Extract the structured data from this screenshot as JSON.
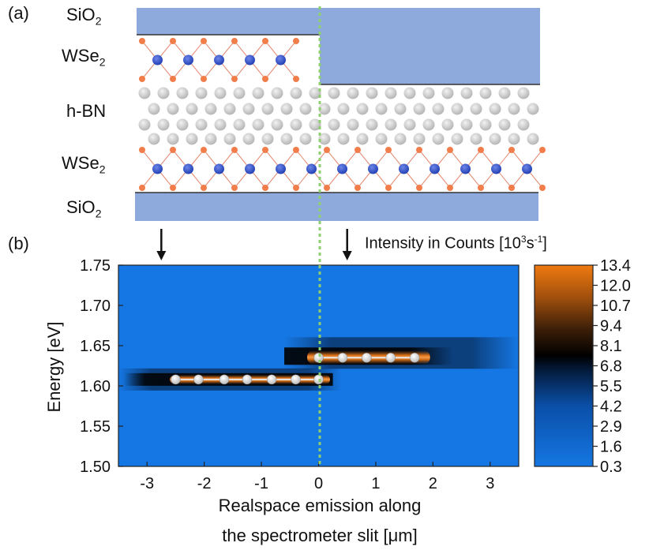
{
  "panel_a": {
    "label": "(a)",
    "layers": [
      {
        "name": "SiO",
        "sub": "2"
      },
      {
        "name": "WSe",
        "sub": "2"
      },
      {
        "name": "h-BN",
        "sub": ""
      },
      {
        "name": "WSe",
        "sub": "2"
      },
      {
        "name": "SiO",
        "sub": "2"
      }
    ]
  },
  "panel_b": {
    "label": "(b)",
    "colorbar_title": "Intensity in Counts [10",
    "colorbar_title_sup": "3",
    "colorbar_title_unit": "s",
    "colorbar_title_unit_sup": "-1",
    "colorbar_title_end": "]",
    "ylabel": "Energy [eV]",
    "xlabel_line1": "Realspace emission along",
    "xlabel_line2": "the spectrometer slit [",
    "xlabel_mu": "μ",
    "xlabel_end": "m]"
  },
  "chart_data": {
    "type": "heatmap",
    "xlabel": "Realspace emission along the spectrometer slit [μm]",
    "ylabel": "Energy [eV]",
    "xlim": [
      -3.5,
      3.5
    ],
    "ylim": [
      1.5,
      1.75
    ],
    "x_ticks": [
      "-3",
      "-2",
      "-1",
      "0",
      "1",
      "2",
      "3"
    ],
    "y_ticks": [
      "1.75",
      "1.70",
      "1.65",
      "1.60",
      "1.55",
      "1.50"
    ],
    "colorbar": {
      "title": "Intensity in Counts [10^3 s^-1]",
      "ticks": [
        "13.4",
        "12.0",
        "10.7",
        "9.4",
        "8.1",
        "6.8",
        "5.5",
        "4.2",
        "2.9",
        "1.6",
        "0.3"
      ],
      "low_color": "#1a7ce0",
      "mid_color": "#000000",
      "high_color": "#e8730f"
    },
    "series": [
      {
        "x": [
          -2.5,
          -2.1,
          -1.65,
          -1.25,
          -0.82,
          -0.4,
          0.0
        ],
        "y": [
          1.608,
          1.608,
          1.608,
          1.608,
          1.608,
          1.608,
          1.608
        ]
      },
      {
        "x": [
          0.0,
          0.42,
          0.84,
          1.26,
          1.68
        ],
        "y": [
          1.635,
          1.635,
          1.635,
          1.635,
          1.635
        ]
      }
    ],
    "arrows_x": [
      -2.75,
      0.5
    ],
    "divider_x": 0
  }
}
